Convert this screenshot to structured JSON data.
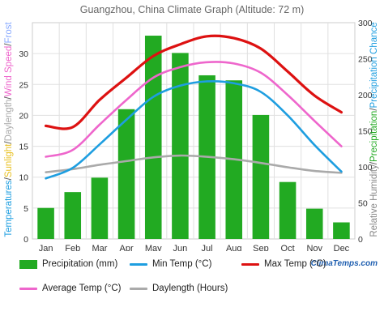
{
  "chart_data": {
    "type": "bar+line",
    "title": "Guangzhou, China Climate Graph (Altitude: 72 m)",
    "categories": [
      "Jan",
      "Feb",
      "Mar",
      "Apr",
      "May",
      "Jun",
      "Jul",
      "Aug",
      "Sep",
      "Oct",
      "Nov",
      "Dec"
    ],
    "bar_series": {
      "name": "Precipitation (mm)",
      "color": "#22aa22",
      "values": [
        43,
        65,
        85,
        180,
        282,
        258,
        227,
        220,
        172,
        79,
        42,
        23
      ]
    },
    "line_series": [
      {
        "name": "Min Temp (°C)",
        "color": "#1e9ee0",
        "values": [
          9.8,
          11.5,
          15.3,
          19.3,
          23.0,
          24.8,
          25.5,
          25.2,
          23.8,
          20.0,
          15.2,
          10.9
        ]
      },
      {
        "name": "Max Temp (°C)",
        "color": "#dd1111",
        "values": [
          18.3,
          18.1,
          22.5,
          26.1,
          29.6,
          31.5,
          32.8,
          32.5,
          30.8,
          27.1,
          23.2,
          20.5
        ]
      },
      {
        "name": "Average Temp (°C)",
        "color": "#ee66cc",
        "values": [
          13.3,
          14.4,
          18.5,
          22.5,
          26.1,
          27.8,
          28.6,
          28.4,
          26.9,
          23.3,
          19.1,
          15.0
        ]
      },
      {
        "name": "Daylength (Hours)",
        "color": "#aaaaaa",
        "values": [
          10.8,
          11.3,
          12.0,
          12.6,
          13.2,
          13.5,
          13.3,
          12.9,
          12.3,
          11.6,
          11.0,
          10.7
        ]
      }
    ],
    "left_axis": {
      "label_parts": [
        {
          "text": "Temperatures",
          "color": "#1e9ee0"
        },
        {
          "text": "/",
          "color": "#555555"
        },
        {
          "text": "Sunlight",
          "color": "#e8c020"
        },
        {
          "text": "/",
          "color": "#555555"
        },
        {
          "text": "Daylength",
          "color": "#aaaaaa"
        },
        {
          "text": "/",
          "color": "#555555"
        },
        {
          "text": "Wind Speed",
          "color": "#ee66cc"
        },
        {
          "text": "/",
          "color": "#555555"
        },
        {
          "text": "Frost",
          "color": "#88aaff"
        }
      ],
      "ylim": [
        0,
        35
      ],
      "ticks": [
        "0",
        "5",
        "10",
        "15",
        "20",
        "25",
        "30"
      ]
    },
    "right_axis": {
      "label_parts": [
        {
          "text": "Relative Humidity",
          "color": "#888888"
        },
        {
          "text": "/",
          "color": "#555555"
        },
        {
          "text": "Precipitation",
          "color": "#22aa22"
        },
        {
          "text": "/",
          "color": "#555555"
        },
        {
          "text": "Precipitation Chance",
          "color": "#1e9ee0"
        }
      ],
      "ylim": [
        0,
        300
      ],
      "ticks": [
        "0",
        "50",
        "100",
        "150",
        "200",
        "250",
        "300"
      ]
    },
    "grid": true,
    "legend_position": "bottom"
  },
  "brand": "ClimaTemps.com"
}
